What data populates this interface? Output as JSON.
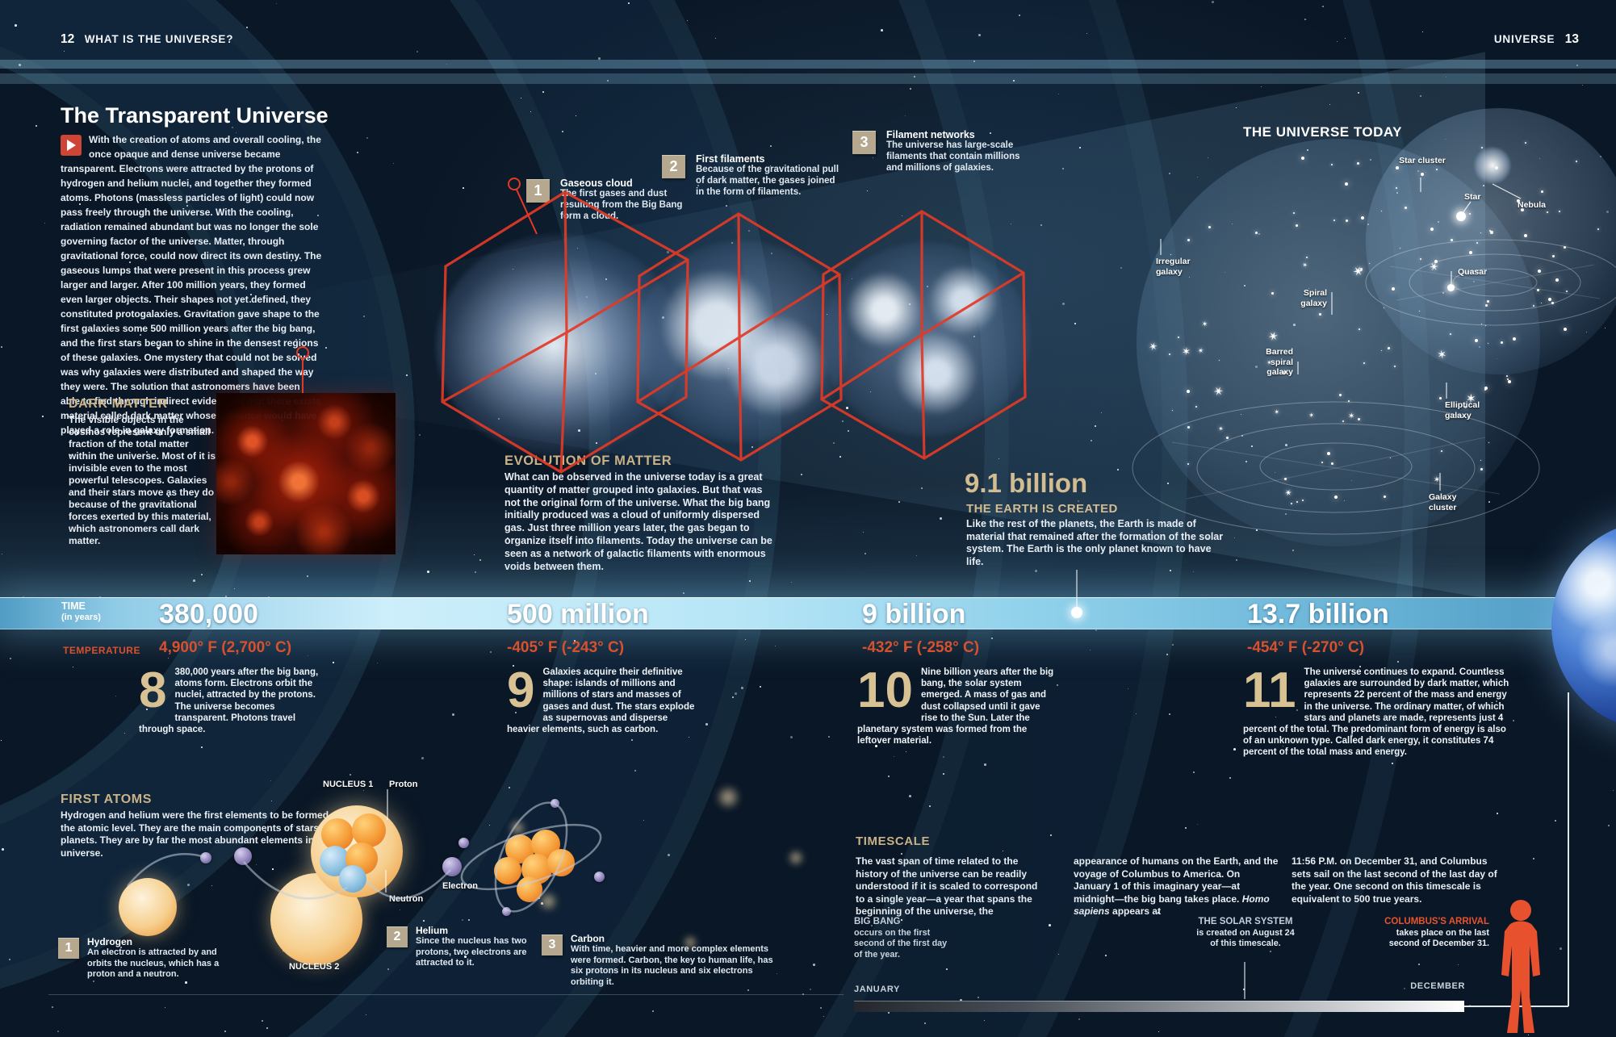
{
  "colors": {
    "background": "#0a1726",
    "accent_tan": "#d2bc92",
    "accent_red": "#e23a26",
    "temperature_red": "#d8512f",
    "band_blue": "#9fd8ee",
    "columbus_orange": "#e8532e"
  },
  "header": {
    "left_folio": "12",
    "left_title": "WHAT IS THE UNIVERSE?",
    "right_title": "UNIVERSE",
    "right_folio": "13"
  },
  "intro": {
    "title": "The Transparent Universe",
    "body": "With the creation of atoms and overall cooling, the once opaque and dense universe became transparent. Electrons were attracted by the protons of hydrogen and helium nuclei, and together they formed atoms. Photons (massless particles of light) could now pass freely through the universe. With the cooling, radiation remained abundant but was no longer the sole governing factor of the universe. Matter, through gravitational force, could now direct its own destiny. The gaseous lumps that were present in this process grew larger and larger. After 100 million years, they formed even larger objects. Their shapes not yet defined, they constituted protogalaxies. Gravitation gave shape to the first galaxies some 500 million years after the big bang, and the first stars began to shine in the densest regions of these galaxies. One mystery that could not be solved was why galaxies were distributed and shaped the way they were. The solution that astronomers have been able to find through indirect evidence is that there exists material called dark matter whose presence would have played a role in galaxy formation."
  },
  "dark_matter": {
    "title": "DARK MATTER",
    "body": "The visible objects in the cosmos represent only a small fraction of the total matter within the universe. Most of it is invisible even to the most powerful telescopes. Galaxies and their stars move as they do because of the gravitational forces exerted by this material, which astronomers call dark matter."
  },
  "matter_steps": [
    {
      "num": "1",
      "title": "Gaseous cloud",
      "body": "The first gases and dust resulting from the Big Bang form a cloud."
    },
    {
      "num": "2",
      "title": "First filaments",
      "body": "Because of the gravitational pull of dark matter, the gases joined in the form of filaments."
    },
    {
      "num": "3",
      "title": "Filament networks",
      "body": "The universe has large-scale filaments that contain millions and millions of galaxies."
    }
  ],
  "evolution": {
    "title": "EVOLUTION OF MATTER",
    "body": "What can be observed in the universe today is a great quantity of matter grouped into galaxies. But that was not the original form of the universe. What the big bang initially produced was a cloud of uniformly dispersed gas. Just three million years later, the gas began to organize itself into filaments. Today the universe can be seen as a network of galactic filaments with enormous voids between them."
  },
  "earth_created": {
    "value": "9.1 billion",
    "title": "THE EARTH IS CREATED",
    "body": "Like the rest of the planets, the Earth is made of material that remained after the formation of the solar system. The Earth is the only planet known to have life."
  },
  "universe_today": {
    "title": "THE UNIVERSE TODAY",
    "labels": {
      "star_cluster": "Star cluster",
      "star": "Star",
      "nebula": "Nebula",
      "irregular": "Irregular galaxy",
      "quasar": "Quasar",
      "spiral": "Spiral galaxy",
      "barred": "Barred spiral galaxy",
      "elliptical": "Elliptical galaxy",
      "cluster": "Galaxy cluster"
    }
  },
  "timeline": {
    "time_label": "TIME",
    "time_unit": "(in years)",
    "temperature_label": "TEMPERATURE",
    "columns": [
      {
        "time": "380,000",
        "temp": "4,900° F (2,700° C)",
        "num": "8",
        "body": "380,000 years after the big bang, atoms form. Electrons orbit the nuclei, attracted by the protons. The universe becomes transparent. Photons travel through space."
      },
      {
        "time": "500 million",
        "temp": "-405° F (-243° C)",
        "num": "9",
        "body": "Galaxies acquire their definitive shape: islands of millions and millions of stars and masses of gases and dust. The stars explode as supernovas and disperse heavier elements, such as carbon."
      },
      {
        "time": "9 billion",
        "temp": "-432° F (-258° C)",
        "num": "10",
        "body": "Nine billion years after the big bang, the solar system emerged. A mass of gas and dust collapsed until it gave rise to the Sun. Later the planetary system was formed from the leftover material."
      },
      {
        "time": "13.7 billion",
        "temp": "-454° F (-270° C)",
        "num": "11",
        "body": "The universe continues to expand. Countless galaxies are surrounded by dark matter, which represents 22 percent of the mass and energy in the universe. The ordinary matter, of which stars and planets are made, represents just 4 percent of the total. The predominant form of energy is also of an unknown type. Called dark energy, it constitutes 74 percent of the total mass and energy."
      }
    ]
  },
  "first_atoms": {
    "title": "FIRST ATOMS",
    "body": "Hydrogen and helium were the first elements to be formed at the atomic level. They are the main components of stars and planets. They are by far the most abundant elements in the universe.",
    "labels": {
      "nucleus1": "NUCLEUS 1",
      "proton": "Proton",
      "electron": "Electron",
      "neutron": "Neutron",
      "nucleus2": "NUCLEUS 2"
    },
    "items": [
      {
        "num": "1",
        "title": "Hydrogen",
        "body": "An electron is attracted by and orbits the nucleus, which has a proton and a neutron."
      },
      {
        "num": "2",
        "title": "Helium",
        "body": "Since the nucleus has two protons, two electrons are attracted to it."
      },
      {
        "num": "3",
        "title": "Carbon",
        "body": "With time, heavier and more complex elements were formed. Carbon, the key to human life, has six protons in its nucleus and six electrons orbiting it."
      }
    ]
  },
  "timescale": {
    "title": "TIMESCALE",
    "col1": "The vast span of time related to the history of the universe can be readily understood if it is scaled to correspond to a single year—a year that spans the beginning of the universe, the",
    "col2_pre": "appearance of humans on the Earth, and the voyage of Columbus to America. On January 1 of this imaginary year—at midnight—the big bang takes place. ",
    "col2_italic": "Homo sapiens",
    "col2_post": " appears at",
    "col3": "11:56 P.M. on December 31, and Columbus sets sail on the last second of the last day of the year. One second on this timescale is equivalent to 500 true years.",
    "big_bang_title": "BIG BANG",
    "big_bang_body": "occurs on the first second of the first day of the year.",
    "solar_title": "THE SOLAR SYSTEM",
    "solar_body": "is created on August 24 of this timescale.",
    "columbus_title": "COLUMBUS'S ARRIVAL",
    "columbus_body": "takes place on the last second of December 31.",
    "start_label": "JANUARY",
    "end_label": "DECEMBER"
  }
}
